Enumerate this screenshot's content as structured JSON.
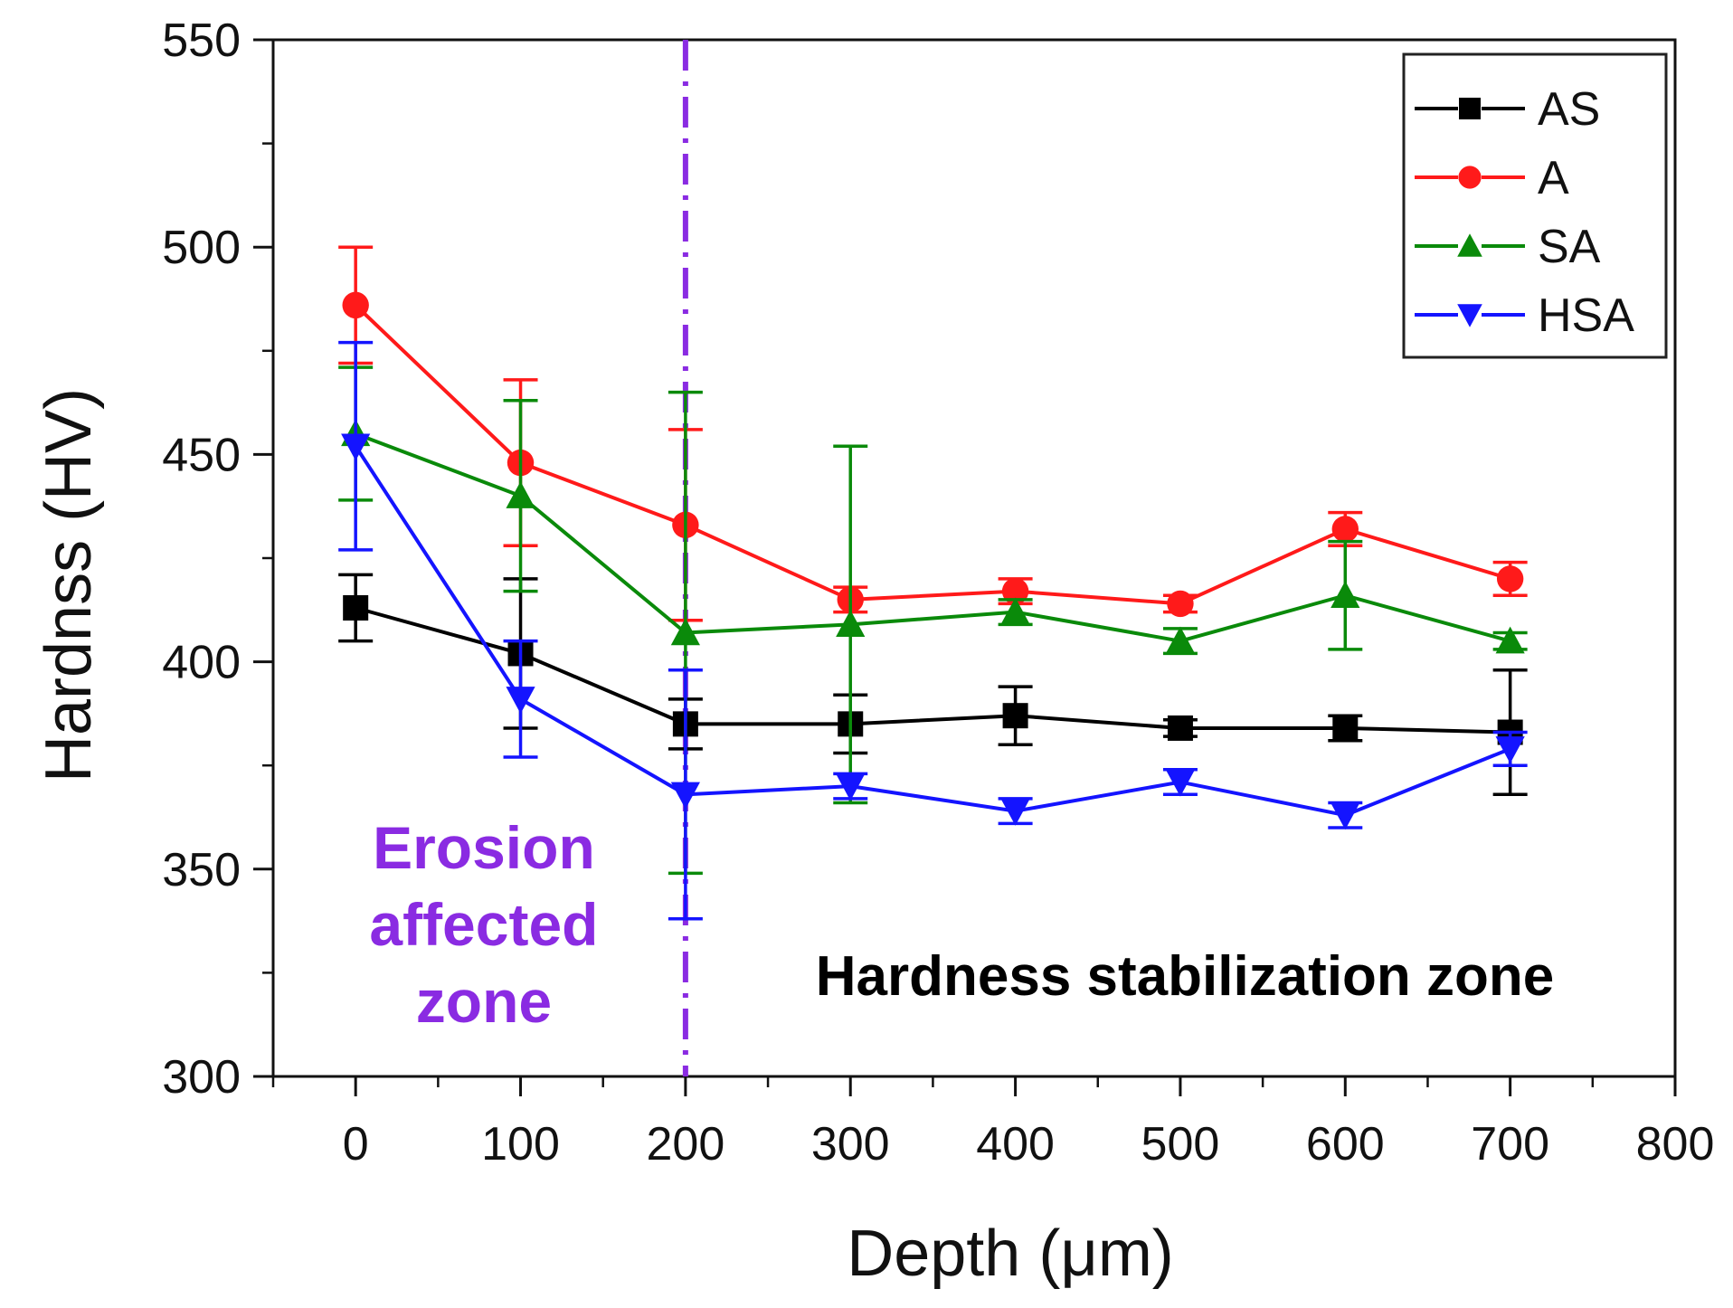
{
  "chart_data": {
    "type": "line",
    "title": "",
    "xlabel": "Depth (μm)",
    "ylabel": "Hardnss (HV)",
    "xlim": [
      -50,
      800
    ],
    "ylim": [
      300,
      550
    ],
    "xticks": [
      0,
      100,
      200,
      300,
      400,
      500,
      600,
      700,
      800
    ],
    "yticks": [
      300,
      350,
      400,
      450,
      500,
      550
    ],
    "grid": false,
    "legend_position": "top-right",
    "x": [
      0,
      100,
      200,
      300,
      400,
      500,
      600,
      700
    ],
    "series": [
      {
        "name": "AS",
        "color": "#000000",
        "marker": "square",
        "values": [
          413,
          402,
          385,
          385,
          387,
          384,
          384,
          383
        ],
        "errors": [
          8,
          18,
          6,
          7,
          7,
          2,
          3,
          15
        ]
      },
      {
        "name": "A",
        "color": "#ff1a1a",
        "marker": "circle",
        "values": [
          486,
          448,
          433,
          415,
          417,
          414,
          432,
          420
        ],
        "errors": [
          14,
          20,
          23,
          3,
          3,
          2,
          4,
          4
        ]
      },
      {
        "name": "SA",
        "color": "#0a8a0a",
        "marker": "triangle-up",
        "values": [
          455,
          440,
          407,
          409,
          412,
          405,
          416,
          405
        ],
        "errors": [
          16,
          23,
          58,
          43,
          3,
          3,
          13,
          2
        ]
      },
      {
        "name": "HSA",
        "color": "#1414ff",
        "marker": "triangle-down",
        "values": [
          452,
          391,
          368,
          370,
          364,
          371,
          363,
          379
        ],
        "errors": [
          25,
          14,
          30,
          3,
          3,
          3,
          3,
          4
        ]
      }
    ],
    "vline": {
      "x": 200,
      "color": "#8a2be2",
      "style": "dash-dot"
    },
    "annotations": {
      "erosion_line1": "Erosion",
      "erosion_line2": "affected",
      "erosion_line3": "zone",
      "erosion_color": "#8a2be2",
      "stabilization": "Hardness stabilization zone",
      "stabilization_color": "#000000"
    }
  }
}
